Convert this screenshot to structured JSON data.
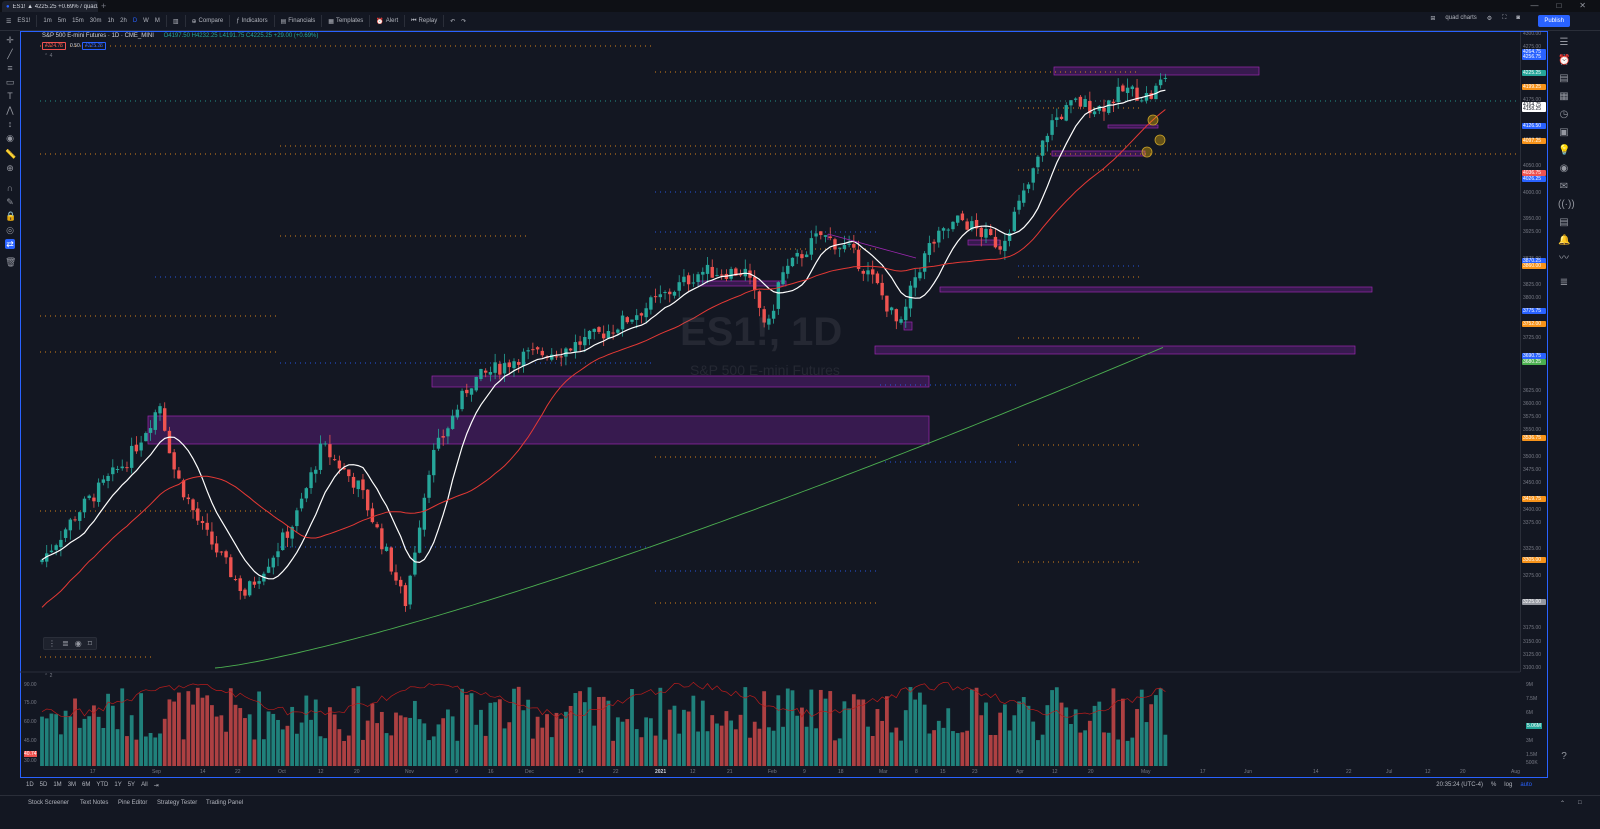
{
  "browser": {
    "tab_title": "ES1! ▲ 4225.25 +0.69% / quad...",
    "new_tab": "+"
  },
  "toolbar": {
    "symbol": "ES1!",
    "intervals": [
      "1m",
      "5m",
      "15m",
      "30m",
      "1h",
      "2h",
      "D",
      "W",
      "M"
    ],
    "compare": "Compare",
    "indicators": "Indicators",
    "financials": "Financials",
    "templates": "Templates",
    "alert": "Alert",
    "replay": "Replay",
    "layout_name": "quad charts",
    "publish": "Publish"
  },
  "legend": {
    "title": "S&P 500 E-mini Futures · 1D · CME_MINI",
    "ohlc": "O4197.50 H4232.25 L4191.75 C4225.25 +29.00 (+0.69%)",
    "bid": "4224.75",
    "symbol_short": "0.50",
    "ask": "4225.25",
    "collapsed": "4"
  },
  "watermark": {
    "symbol": "ES1!, 1D",
    "name": "S&P 500 E-mini Futures"
  },
  "price_scale": {
    "labels": [
      {
        "v": 4300,
        "t": "4300.00"
      },
      {
        "v": 4275,
        "t": "4275.00"
      },
      {
        "v": 4225,
        "t": "4225.00"
      },
      {
        "v": 4175,
        "t": "4175.00"
      },
      {
        "v": 4125,
        "t": "4125.00"
      },
      {
        "v": 4100,
        "t": "4100.00"
      },
      {
        "v": 4050,
        "t": "4050.00"
      },
      {
        "v": 4000,
        "t": "4000.00"
      },
      {
        "v": 3950,
        "t": "3950.00"
      },
      {
        "v": 3925,
        "t": "3925.00"
      },
      {
        "v": 3875,
        "t": "3875.00"
      },
      {
        "v": 3825,
        "t": "3825.00"
      },
      {
        "v": 3800,
        "t": "3800.00"
      },
      {
        "v": 3750,
        "t": "3750.00"
      },
      {
        "v": 3725,
        "t": "3725.00"
      },
      {
        "v": 3675,
        "t": "3675.00"
      },
      {
        "v": 3625,
        "t": "3625.00"
      },
      {
        "v": 3600,
        "t": "3600.00"
      },
      {
        "v": 3575,
        "t": "3575.00"
      },
      {
        "v": 3550,
        "t": "3550.00"
      },
      {
        "v": 3500,
        "t": "3500.00"
      },
      {
        "v": 3475,
        "t": "3475.00"
      },
      {
        "v": 3450,
        "t": "3450.00"
      },
      {
        "v": 3400,
        "t": "3400.00"
      },
      {
        "v": 3375,
        "t": "3375.00"
      },
      {
        "v": 3325,
        "t": "3325.00"
      },
      {
        "v": 3300,
        "t": "3300.00"
      },
      {
        "v": 3275,
        "t": "3275.00"
      },
      {
        "v": 3225,
        "t": "3225.00"
      },
      {
        "v": 3175,
        "t": "3175.00"
      },
      {
        "v": 3150,
        "t": "3150.00"
      },
      {
        "v": 3125,
        "t": "3125.00"
      },
      {
        "v": 3100,
        "t": "3100.00"
      }
    ],
    "tags": [
      {
        "v": 4265,
        "t": "4264.75",
        "color": "#2962ff"
      },
      {
        "v": 4256,
        "t": "4256.75",
        "color": "#2962ff"
      },
      {
        "v": 4225.25,
        "t": "4225.25",
        "color": "#26a69a"
      },
      {
        "v": 4200,
        "t": "4199.25",
        "color": "#f7931a"
      },
      {
        "v": 4166,
        "t": "4164.75",
        "color": "#ffffff"
      },
      {
        "v": 4158,
        "t": "4158.25",
        "color": "#ffffff"
      },
      {
        "v": 4126,
        "t": "4126.50",
        "color": "#2962ff"
      },
      {
        "v": 4097,
        "t": "4097.25",
        "color": "#f7931a"
      },
      {
        "v": 4036,
        "t": "4036.75",
        "color": "#ef5350"
      },
      {
        "v": 4026,
        "t": "4026.25",
        "color": "#2962ff"
      },
      {
        "v": 3870,
        "t": "3870.25",
        "color": "#2962ff"
      },
      {
        "v": 3860,
        "t": "3860.00",
        "color": "#f7931a"
      },
      {
        "v": 3775,
        "t": "3775.75",
        "color": "#2962ff"
      },
      {
        "v": 3752,
        "t": "3752.00",
        "color": "#f7931a"
      },
      {
        "v": 3690,
        "t": "3690.75",
        "color": "#2962ff"
      },
      {
        "v": 3680,
        "t": "3680.25",
        "color": "#4caf50"
      },
      {
        "v": 3536,
        "t": "3536.75",
        "color": "#f7931a"
      },
      {
        "v": 3419,
        "t": "3419.75",
        "color": "#f7931a"
      },
      {
        "v": 3305,
        "t": "3305.00",
        "color": "#f7931a"
      },
      {
        "v": 3225,
        "t": "3225.00",
        "color": "#9598a1"
      }
    ]
  },
  "volume_scale": {
    "labels": [
      "9M",
      "7.5M",
      "6M",
      "5.06M",
      "3M",
      "1.5M",
      "500K"
    ],
    "left_labels": [
      "90.00",
      "75.00",
      "60.00",
      "45.00",
      "40.74",
      "30.00"
    ],
    "panel_label": "2"
  },
  "time_axis": {
    "labels": [
      "17",
      "Sep",
      "14",
      "22",
      "Oct",
      "12",
      "20",
      "Nov",
      "9",
      "16",
      "Dec",
      "14",
      "22",
      "2021",
      "12",
      "21",
      "Feb",
      "9",
      "18",
      "Mar",
      "8",
      "15",
      "23",
      "Apr",
      "12",
      "20",
      "May",
      "17",
      "Jun",
      "14",
      "22",
      "Jul",
      "12",
      "20",
      "Aug"
    ]
  },
  "range_bar": {
    "ranges": [
      "1D",
      "5D",
      "1M",
      "3M",
      "6M",
      "YTD",
      "1Y",
      "5Y",
      "All"
    ],
    "clock": "20:35:24 (UTC-4)",
    "pct": "%",
    "log": "log",
    "auto": "auto"
  },
  "bottom_panel": {
    "tabs": [
      "Stock Screener",
      "Text Notes",
      "Pine Editor",
      "Strategy Tester",
      "Trading Panel"
    ]
  },
  "colors": {
    "background": "#131722",
    "up": "#26a69a",
    "down": "#ef5350",
    "zone": "#7b1fa2",
    "ma_fast": "#ffffff",
    "ma_mid": "#e53935",
    "ma_slow": "#4caf50",
    "accent": "#2962ff"
  },
  "chart_data": {
    "type": "candlestick",
    "symbol": "ES1!",
    "interval": "1D",
    "ylim": [
      3100,
      4300
    ],
    "grid": false,
    "volume_panel": true
  }
}
